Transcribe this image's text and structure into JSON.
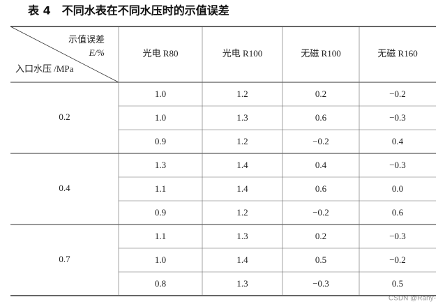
{
  "title": "表 4　不同水表在不同水压时的示值误差",
  "header": {
    "corner_top": "示值误差",
    "corner_unit": "E/%",
    "corner_bottom": "入口水压 /MPa",
    "columns": [
      "光电 R80",
      "光电 R100",
      "无磁 R100",
      "无磁 R160"
    ]
  },
  "groups": [
    {
      "pressure": "0.2",
      "rows": [
        [
          "1.0",
          "1.2",
          "0.2",
          "−0.2"
        ],
        [
          "1.0",
          "1.3",
          "0.6",
          "−0.3"
        ],
        [
          "0.9",
          "1.2",
          "−0.2",
          "0.4"
        ]
      ]
    },
    {
      "pressure": "0.4",
      "rows": [
        [
          "1.3",
          "1.4",
          "0.4",
          "−0.3"
        ],
        [
          "1.1",
          "1.4",
          "0.6",
          "0.0"
        ],
        [
          "0.9",
          "1.2",
          "−0.2",
          "0.6"
        ]
      ]
    },
    {
      "pressure": "0.7",
      "rows": [
        [
          "1.1",
          "1.3",
          "0.2",
          "−0.3"
        ],
        [
          "1.0",
          "1.4",
          "0.5",
          "−0.2"
        ],
        [
          "0.8",
          "1.3",
          "−0.3",
          "0.5"
        ]
      ]
    }
  ],
  "watermark": "CSDN @Rany-"
}
